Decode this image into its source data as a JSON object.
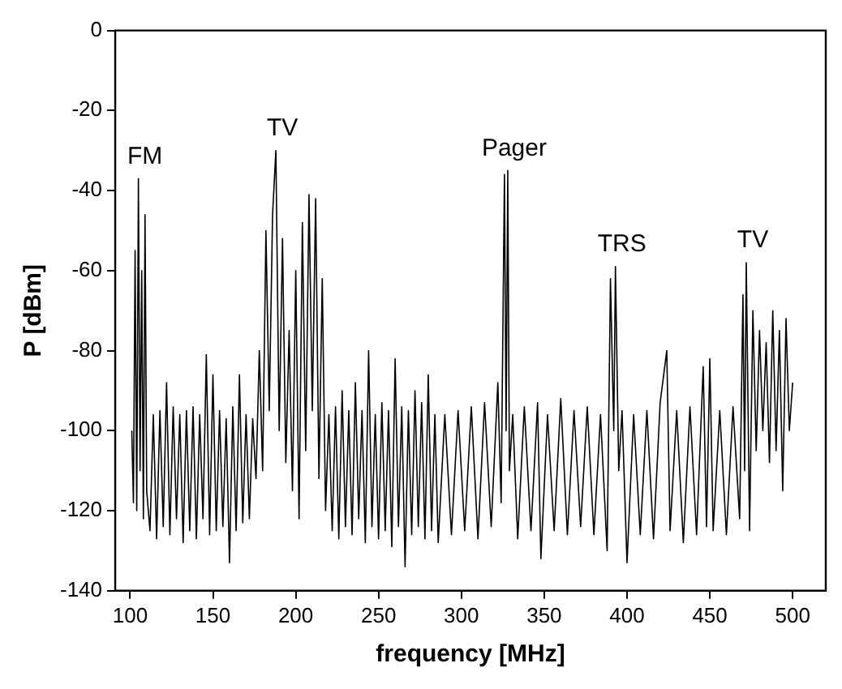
{
  "chart_data": {
    "type": "line",
    "xlabel": "frequency [MHz]",
    "ylabel": "P [dBm]",
    "xlim": [
      91,
      520
    ],
    "ylim": [
      -140,
      0
    ],
    "xticks": [
      100,
      150,
      200,
      250,
      300,
      350,
      400,
      450,
      500
    ],
    "yticks": [
      -140,
      -120,
      -100,
      -80,
      -60,
      -40,
      -20,
      0
    ],
    "grid": false,
    "legend": false,
    "marker": "none",
    "line_style": "solid",
    "annotations": [
      "FM",
      "TV",
      "Pager",
      "TRS",
      "TV"
    ],
    "series": [
      {
        "color": "#000000",
        "x": [
          101,
          102,
          103,
          104,
          105,
          106,
          107,
          108,
          109,
          110,
          112,
          114,
          116,
          118,
          120,
          122,
          124,
          126,
          128,
          130,
          132,
          134,
          136,
          138,
          140,
          142,
          144,
          146,
          148,
          150,
          152,
          154,
          156,
          158,
          160,
          162,
          164,
          166,
          168,
          170,
          172,
          174,
          176,
          178,
          180,
          182,
          184,
          186,
          188,
          190,
          192,
          194,
          196,
          198,
          200,
          202,
          204,
          206,
          208,
          210,
          212,
          214,
          216,
          218,
          220,
          222,
          224,
          226,
          228,
          230,
          232,
          234,
          236,
          238,
          240,
          242,
          244,
          246,
          248,
          250,
          252,
          254,
          256,
          258,
          260,
          262,
          264,
          266,
          268,
          270,
          272,
          274,
          276,
          278,
          280,
          282,
          284,
          286,
          290,
          294,
          298,
          302,
          306,
          310,
          314,
          318,
          322,
          324,
          326,
          327,
          328,
          329,
          331,
          334,
          338,
          342,
          346,
          348,
          352,
          356,
          360,
          364,
          368,
          372,
          376,
          380,
          384,
          388,
          390,
          392,
          393,
          395,
          397,
          400,
          404,
          408,
          412,
          416,
          420,
          424,
          426,
          430,
          434,
          438,
          442,
          446,
          448,
          450,
          452,
          456,
          460,
          464,
          468,
          470,
          471,
          472,
          474,
          476,
          478,
          480,
          482,
          484,
          486,
          488,
          490,
          492,
          494,
          496,
          498,
          500
        ],
        "values": [
          -100,
          -118,
          -55,
          -120,
          -37,
          -110,
          -60,
          -122,
          -46,
          -115,
          -125,
          -96,
          -127,
          -95,
          -124,
          -88,
          -126,
          -94,
          -122,
          -96,
          -128,
          -95,
          -125,
          -94,
          -127,
          -96,
          -122,
          -81,
          -126,
          -86,
          -125,
          -95,
          -124,
          -97,
          -133,
          -94,
          -125,
          -86,
          -123,
          -96,
          -122,
          -97,
          -112,
          -80,
          -110,
          -50,
          -95,
          -46,
          -30,
          -100,
          -52,
          -108,
          -75,
          -115,
          -60,
          -122,
          -48,
          -105,
          -41,
          -95,
          -42,
          -112,
          -62,
          -120,
          -96,
          -125,
          -94,
          -127,
          -90,
          -124,
          -95,
          -126,
          -88,
          -122,
          -95,
          -128,
          -80,
          -124,
          -96,
          -127,
          -93,
          -125,
          -95,
          -129,
          -82,
          -124,
          -94,
          -134,
          -95,
          -126,
          -90,
          -124,
          -93,
          -127,
          -86,
          -125,
          -96,
          -128,
          -96,
          -126,
          -95,
          -125,
          -94,
          -127,
          -93,
          -124,
          -88,
          -118,
          -36,
          -100,
          -35,
          -110,
          -96,
          -127,
          -94,
          -125,
          -93,
          -132,
          -96,
          -125,
          -92,
          -126,
          -95,
          -124,
          -94,
          -126,
          -96,
          -130,
          -62,
          -100,
          -59,
          -110,
          -95,
          -133,
          -96,
          -126,
          -95,
          -127,
          -93,
          -80,
          -125,
          -95,
          -128,
          -94,
          -126,
          -84,
          -124,
          -82,
          -125,
          -95,
          -126,
          -94,
          -122,
          -66,
          -110,
          -58,
          -125,
          -70,
          -105,
          -75,
          -100,
          -78,
          -108,
          -70,
          -105,
          -75,
          -115,
          -72,
          -100,
          -88
        ]
      }
    ]
  }
}
